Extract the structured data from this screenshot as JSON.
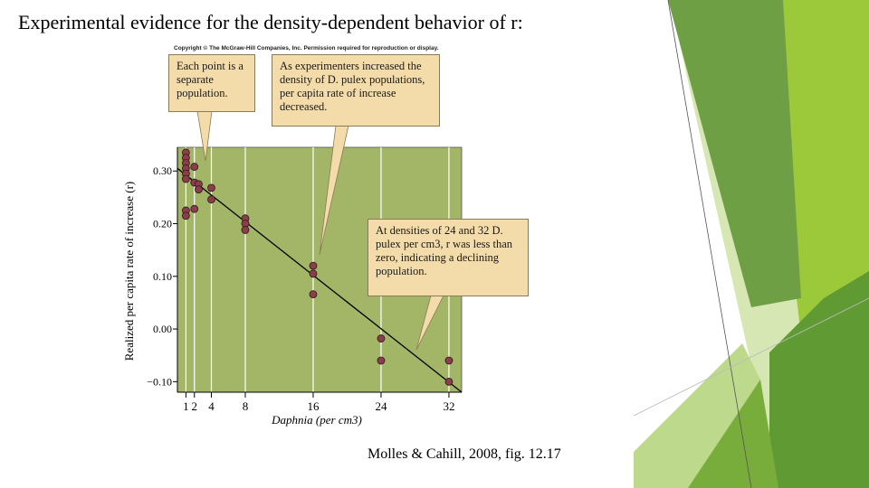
{
  "slide": {
    "title": "Experimental evidence for the density-dependent behavior of r:",
    "citation": "Molles & Cahill, 2008, fig. 12.17"
  },
  "figure": {
    "copyright": "Copyright © The McGraw-Hill Companies, Inc. Permission required for reproduction or display.",
    "callouts": [
      {
        "text": "Each point is a separate population."
      },
      {
        "text": "As experimenters increased the density of D. pulex populations, per capita rate of increase decreased."
      },
      {
        "text": "At densities of 24 and 32 D. pulex per cm3, r was less than zero, indicating a declining population."
      }
    ]
  },
  "colors": {
    "plot_background": "#a3b567",
    "point_fill": "#8b3d4b",
    "callout_fill": "#f4dcaa",
    "green_dark": "#5f9a32",
    "green_light": "#9cc93a",
    "green_pale": "#d6e7b4"
  },
  "chart_data": {
    "type": "scatter",
    "xlabel": "Daphnia (per cm3)",
    "ylabel": "Realized per capita rate of increase (r)",
    "x_ticks": [
      1,
      2,
      4,
      8,
      16,
      24,
      32
    ],
    "y_ticks": [
      0.3,
      0.2,
      0.1,
      0.0,
      -0.1
    ],
    "y_tick_labels": [
      "0.30",
      "0.20",
      "0.10",
      "0.00",
      "−0.10"
    ],
    "xlim": [
      0,
      33.5
    ],
    "ylim": [
      -0.12,
      0.345
    ],
    "grid": "vertical lines at x ticks",
    "points": [
      {
        "x": 1,
        "y": 0.335
      },
      {
        "x": 1,
        "y": 0.325
      },
      {
        "x": 1,
        "y": 0.315
      },
      {
        "x": 1,
        "y": 0.305
      },
      {
        "x": 1,
        "y": 0.295
      },
      {
        "x": 1,
        "y": 0.285
      },
      {
        "x": 1,
        "y": 0.225
      },
      {
        "x": 1,
        "y": 0.215
      },
      {
        "x": 2,
        "y": 0.308
      },
      {
        "x": 2,
        "y": 0.278
      },
      {
        "x": 2,
        "y": 0.228
      },
      {
        "x": 2.5,
        "y": 0.275
      },
      {
        "x": 2.5,
        "y": 0.265
      },
      {
        "x": 4,
        "y": 0.268
      },
      {
        "x": 4,
        "y": 0.246
      },
      {
        "x": 8,
        "y": 0.21
      },
      {
        "x": 8,
        "y": 0.2
      },
      {
        "x": 8,
        "y": 0.188
      },
      {
        "x": 16,
        "y": 0.12
      },
      {
        "x": 16,
        "y": 0.105
      },
      {
        "x": 16,
        "y": 0.066
      },
      {
        "x": 24,
        "y": -0.018
      },
      {
        "x": 24,
        "y": -0.06
      },
      {
        "x": 32,
        "y": -0.06
      },
      {
        "x": 32,
        "y": -0.1
      }
    ],
    "regression_line": [
      {
        "x": 0,
        "y": 0.305
      },
      {
        "x": 33.5,
        "y": -0.12
      }
    ]
  }
}
